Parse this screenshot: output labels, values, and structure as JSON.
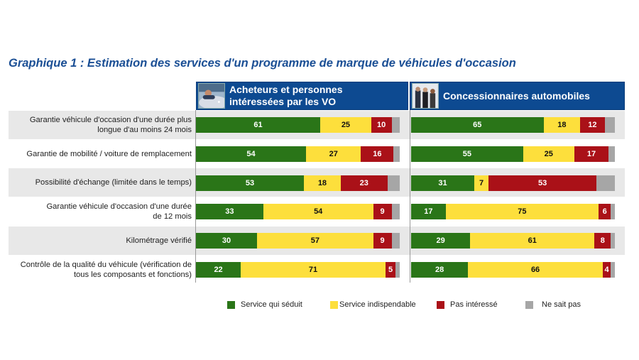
{
  "chart_data": {
    "type": "bar",
    "orientation": "horizontal-stacked-100",
    "title": "Graphique 1 : Estimation des services d'un programme de marque de véhicules d'occasion",
    "categories": [
      [
        "Garantie véhicule d'occasion d'une durée plus",
        "longue d'au moins 24 mois"
      ],
      [
        "Garantie de mobilité / voiture de remplacement"
      ],
      [
        "Possibilité d'échange (limitée dans le temps)"
      ],
      [
        "Garantie véhicule d'occasion d'une durée",
        "de 12 mois"
      ],
      [
        "Kilométrage vérifié"
      ],
      [
        "Contrôle de la qualité du véhicule (vérification de",
        "tous les composants et fonctions)"
      ]
    ],
    "legend": [
      {
        "key": "seduit",
        "label": "Service qui séduit",
        "color": "#2a7518",
        "text_color": "#ffffff"
      },
      {
        "key": "indispensable",
        "label": "Service indispendable",
        "color": "#fddf3c",
        "text_color": "#111111"
      },
      {
        "key": "pas_interesse",
        "label": "Pas intéressé",
        "color": "#aa1118",
        "text_color": "#ffffff"
      },
      {
        "key": "ne_sait_pas",
        "label": "Ne sait pas",
        "color": "#a6a6a6",
        "text_color": "#111111"
      }
    ],
    "legend_position": "bottom",
    "xlim": [
      0,
      100
    ],
    "panels": [
      {
        "name": "Acheteurs et personnes intéressées par les VO",
        "header_lines": [
          "Acheteurs et personnes",
          "intéressées par les VO"
        ],
        "thumb_icon": "car-buyer-photo",
        "series": [
          {
            "name": "Service qui séduit",
            "values": [
              61,
              54,
              53,
              33,
              30,
              22
            ]
          },
          {
            "name": "Service indispendable",
            "values": [
              25,
              27,
              18,
              54,
              57,
              71
            ]
          },
          {
            "name": "Pas intéressé",
            "values": [
              10,
              16,
              23,
              9,
              9,
              5
            ]
          },
          {
            "name": "Ne sait pas",
            "values": [
              4,
              3,
              6,
              4,
              4,
              2
            ]
          }
        ]
      },
      {
        "name": "Concessionnaires automobiles",
        "header_lines": [
          "Concessionnaires automobiles"
        ],
        "thumb_icon": "dealers-photo",
        "series": [
          {
            "name": "Service qui séduit",
            "values": [
              65,
              55,
              31,
              17,
              29,
              28
            ]
          },
          {
            "name": "Service indispendable",
            "values": [
              18,
              25,
              7,
              75,
              61,
              66
            ]
          },
          {
            "name": "Pas intéressé",
            "values": [
              12,
              17,
              53,
              6,
              8,
              4
            ]
          },
          {
            "name": "Ne sait pas",
            "values": [
              5,
              3,
              9,
              2,
              2,
              2
            ]
          }
        ]
      }
    ],
    "label_hidden_series": [
      "Ne sait pas"
    ]
  },
  "header": {
    "title": "Graphique 1 : Estimation des services d'un programme de marque de véhicules d'occasion"
  }
}
